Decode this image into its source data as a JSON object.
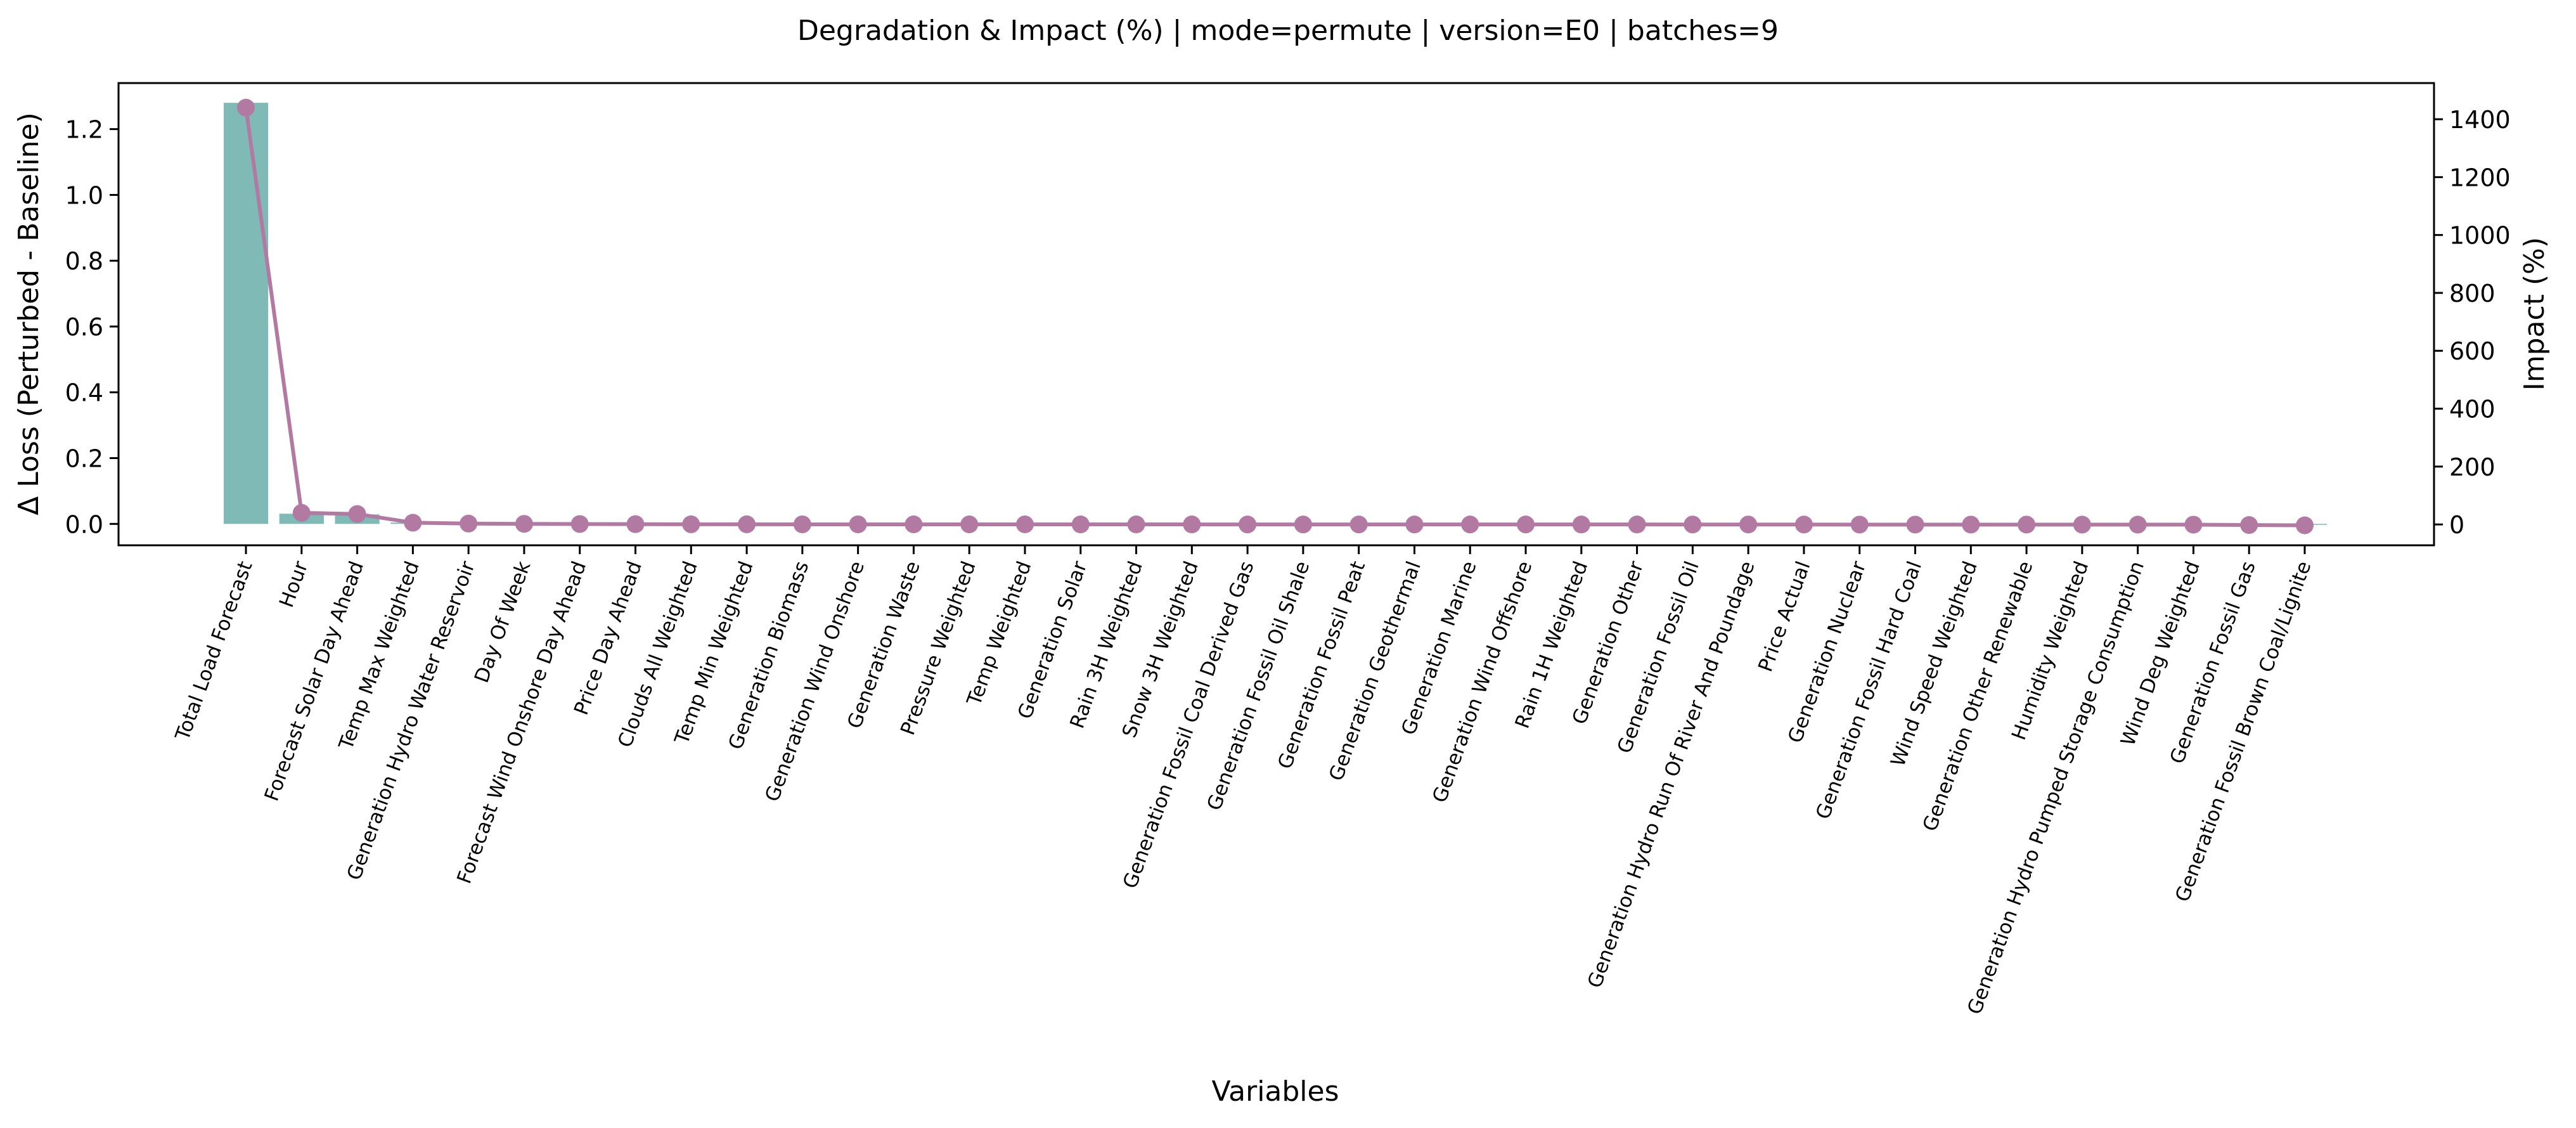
{
  "chart_data": {
    "type": "bar",
    "title": "Degradation & Impact (%) | mode=permute | version=E0 | batches=9",
    "xlabel": "Variables",
    "ylabel": "Δ Loss (Perturbed - Baseline)",
    "y2label": "Impact (%)",
    "ylim": [
      -0.065,
      1.34
    ],
    "y2lim": [
      -72,
      1525
    ],
    "yticks": [
      0.0,
      0.2,
      0.4,
      0.6,
      0.8,
      1.0,
      1.2
    ],
    "y2ticks": [
      0,
      200,
      400,
      600,
      800,
      1000,
      1200,
      1400
    ],
    "grid": false,
    "colors": {
      "bar": "#80bab6",
      "line": "#b27aa3"
    },
    "categories": [
      "Total Load Forecast",
      "Hour",
      "Forecast Solar Day Ahead",
      "Temp Max Weighted",
      "Generation Hydro Water Reservoir",
      "Day Of Week",
      "Forecast Wind Onshore Day Ahead",
      "Price Day Ahead",
      "Clouds All Weighted",
      "Temp Min Weighted",
      "Generation Biomass",
      "Generation Wind Onshore",
      "Generation Waste",
      "Pressure Weighted",
      "Temp Weighted",
      "Generation Solar",
      "Rain 3H Weighted",
      "Snow 3H Weighted",
      "Generation Fossil Coal Derived Gas",
      "Generation Fossil Oil Shale",
      "Generation Fossil Peat",
      "Generation Geothermal",
      "Generation Marine",
      "Generation Wind Offshore",
      "Rain 1H Weighted",
      "Generation Other",
      "Generation Fossil Oil",
      "Generation Hydro Run Of River And Poundage",
      "Price Actual",
      "Generation Nuclear",
      "Generation Fossil Hard Coal",
      "Wind Speed Weighted",
      "Generation Other Renewable",
      "Humidity Weighted",
      "Generation Hydro Pumped Storage Consumption",
      "Wind Deg Weighted",
      "Generation Fossil Gas",
      "Generation Fossil Brown Coal/Lignite"
    ],
    "series": [
      {
        "type": "bar",
        "axis": "left",
        "values": [
          1.28,
          0.031,
          0.029,
          0.004,
          0.002,
          0.0015,
          0.001,
          0.001,
          0.0005,
          0.0005,
          0.0004,
          0.0004,
          0.0003,
          0.0003,
          0.0003,
          0.0002,
          0.0002,
          0.0002,
          0.0,
          0.0,
          0.0,
          0.0,
          0.0,
          0.0,
          -0.0001,
          -0.0001,
          -0.0002,
          -0.0002,
          -0.0002,
          -0.0003,
          -0.0003,
          -0.0004,
          -0.0004,
          -0.0005,
          -0.0005,
          -0.0006,
          -0.001,
          -0.0015
        ]
      },
      {
        "type": "line",
        "axis": "right",
        "values": [
          1440,
          40,
          36,
          6,
          3,
          2,
          1.5,
          1,
          0.5,
          0.5,
          0.4,
          0.4,
          0.3,
          0.3,
          0.3,
          0.2,
          0.2,
          0.2,
          0,
          0,
          0,
          0,
          0,
          0,
          -0.1,
          -0.1,
          -0.2,
          -0.2,
          -0.3,
          -0.4,
          -0.4,
          -0.5,
          -0.5,
          -0.6,
          -0.6,
          -0.7,
          -2,
          -3
        ]
      }
    ]
  }
}
